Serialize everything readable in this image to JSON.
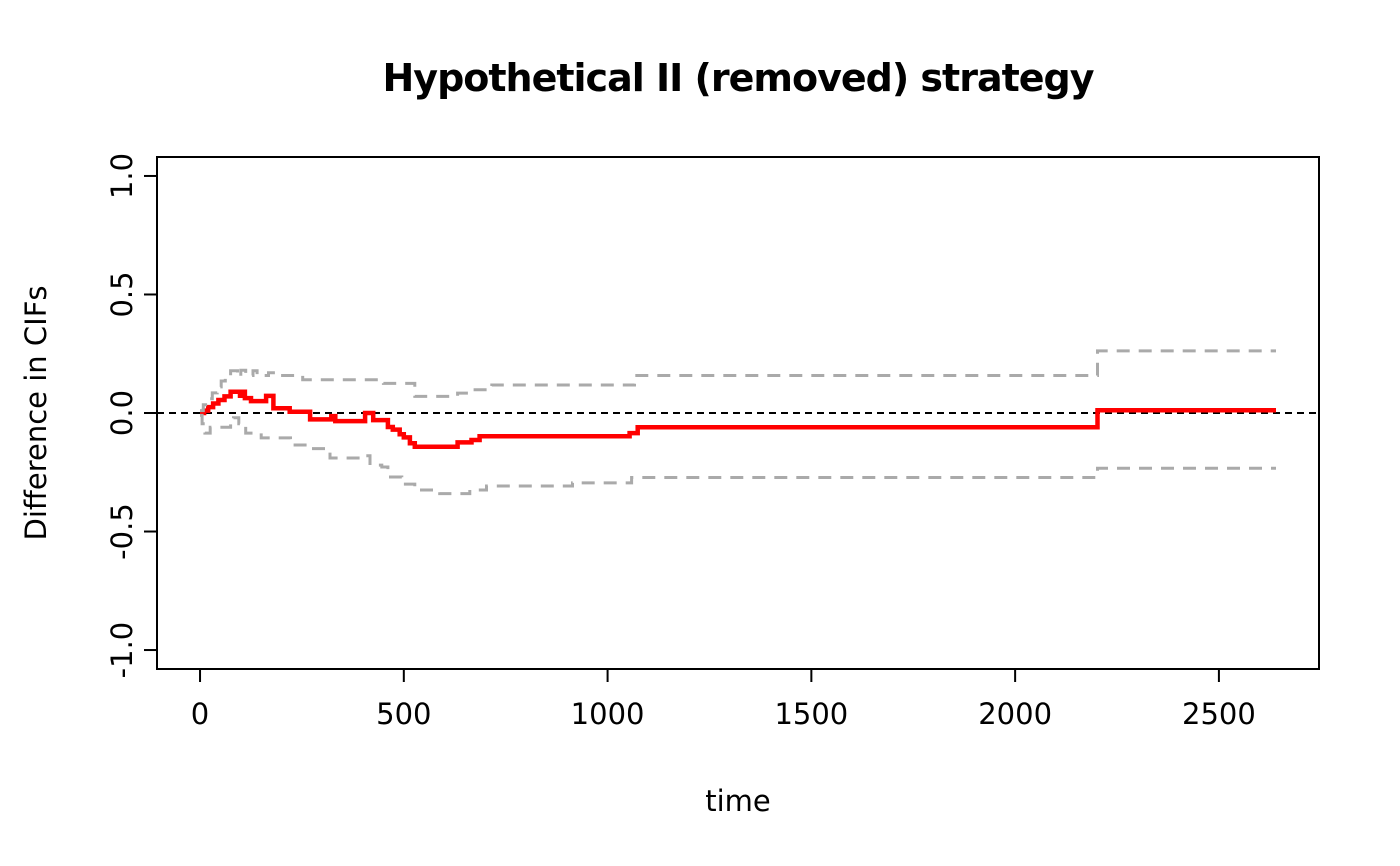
{
  "title": "Hypothetical II (removed) strategy",
  "x_axis": {
    "label": "time"
  },
  "y_axis": {
    "label": "Difference in CIFs"
  },
  "colors": {
    "estimate": "#ff0000",
    "confidence_band": "#aaaaaa",
    "reference_line": "#000000",
    "axis": "#000000",
    "background": "#ffffff"
  },
  "chart_data": {
    "type": "line",
    "title": "Hypothetical II (removed) strategy",
    "xlabel": "time",
    "ylabel": "Difference in CIFs",
    "xlim": [
      -105.6,
      2745.6
    ],
    "ylim": [
      -1.08,
      1.08
    ],
    "x_ticks": [
      0,
      500,
      1000,
      1500,
      2000,
      2500
    ],
    "y_ticks": [
      "-1.0",
      "-0.5",
      "0.0",
      "0.5",
      "1.0"
    ],
    "y_tick_values": [
      -1.0,
      -0.5,
      0.0,
      0.5,
      1.0
    ],
    "grid": false,
    "legend": "none",
    "reference_line_y": 0,
    "step_interpolation": true,
    "series": [
      {
        "name": "difference-in-cifs-estimate",
        "color": "#ff0000",
        "dash": "none",
        "width": 4.5,
        "points": [
          [
            0,
            0
          ],
          [
            10,
            0.01
          ],
          [
            20,
            0.025
          ],
          [
            32,
            0.04
          ],
          [
            45,
            0.055
          ],
          [
            60,
            0.07
          ],
          [
            75,
            0.09
          ],
          [
            98,
            0.073
          ],
          [
            103,
            0.09
          ],
          [
            110,
            0.063
          ],
          [
            125,
            0.05
          ],
          [
            162,
            0.072
          ],
          [
            180,
            0.02
          ],
          [
            220,
            0.005
          ],
          [
            270,
            -0.027
          ],
          [
            322,
            -0.013
          ],
          [
            332,
            -0.034
          ],
          [
            405,
            0.0
          ],
          [
            425,
            -0.03
          ],
          [
            461,
            -0.059
          ],
          [
            473,
            -0.07
          ],
          [
            490,
            -0.09
          ],
          [
            500,
            -0.103
          ],
          [
            515,
            -0.128
          ],
          [
            527,
            -0.142
          ],
          [
            632,
            -0.124
          ],
          [
            666,
            -0.114
          ],
          [
            686,
            -0.098
          ],
          [
            1054,
            -0.085
          ],
          [
            1074,
            -0.06
          ],
          [
            2202,
            0.012
          ],
          [
            2640,
            0.012
          ]
        ]
      },
      {
        "name": "upper-confidence-limit",
        "color": "#aaaaaa",
        "dash": "13 9",
        "width": 3,
        "points": [
          [
            0,
            0.01
          ],
          [
            8,
            0.035
          ],
          [
            18,
            0.06
          ],
          [
            30,
            0.085
          ],
          [
            42,
            0.11
          ],
          [
            52,
            0.135
          ],
          [
            62,
            0.158
          ],
          [
            75,
            0.178
          ],
          [
            92,
            0.152
          ],
          [
            100,
            0.18
          ],
          [
            112,
            0.158
          ],
          [
            130,
            0.178
          ],
          [
            140,
            0.158
          ],
          [
            168,
            0.17
          ],
          [
            190,
            0.158
          ],
          [
            252,
            0.14
          ],
          [
            450,
            0.125
          ],
          [
            527,
            0.07
          ],
          [
            632,
            0.084
          ],
          [
            669,
            0.098
          ],
          [
            716,
            0.118
          ],
          [
            1066,
            0.158
          ],
          [
            2202,
            0.262
          ],
          [
            2640,
            0.262
          ]
        ]
      },
      {
        "name": "lower-confidence-limit",
        "color": "#aaaaaa",
        "dash": "13 9",
        "width": 3,
        "points": [
          [
            0,
            -0.01
          ],
          [
            5,
            -0.045
          ],
          [
            12,
            -0.085
          ],
          [
            25,
            -0.06
          ],
          [
            75,
            -0.03
          ],
          [
            82,
            -0.02
          ],
          [
            95,
            -0.045
          ],
          [
            112,
            -0.085
          ],
          [
            150,
            -0.105
          ],
          [
            222,
            -0.135
          ],
          [
            270,
            -0.15
          ],
          [
            319,
            -0.19
          ],
          [
            392,
            -0.18
          ],
          [
            417,
            -0.22
          ],
          [
            446,
            -0.228
          ],
          [
            461,
            -0.27
          ],
          [
            495,
            -0.3
          ],
          [
            527,
            -0.325
          ],
          [
            588,
            -0.34
          ],
          [
            662,
            -0.325
          ],
          [
            703,
            -0.308
          ],
          [
            914,
            -0.295
          ],
          [
            1059,
            -0.272
          ],
          [
            2202,
            -0.233
          ],
          [
            2640,
            -0.233
          ]
        ]
      }
    ]
  }
}
